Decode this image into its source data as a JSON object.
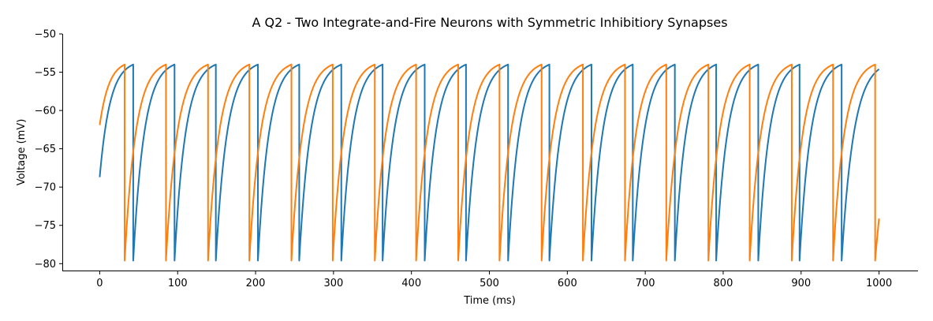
{
  "chart_data": {
    "type": "line",
    "title": "A Q2 - Two Integrate-and-Fire Neurons with Symmetric Inhibitiory Synapses",
    "xlabel": "Time (ms)",
    "ylabel": "Voltage (mV)",
    "xlim": [
      -48,
      1050
    ],
    "ylim": [
      -81,
      -50
    ],
    "xticks": [
      0,
      100,
      200,
      300,
      400,
      500,
      600,
      700,
      800,
      900,
      1000
    ],
    "xtick_labels": [
      "0",
      "100",
      "200",
      "300",
      "400",
      "500",
      "600",
      "700",
      "800",
      "900",
      "1000"
    ],
    "yticks": [
      -80,
      -75,
      -70,
      -65,
      -60,
      -55,
      -50
    ],
    "ytick_labels": [
      "−80",
      "−75",
      "−70",
      "−65",
      "−60",
      "−55",
      "−50"
    ],
    "grid": false,
    "legend": "none",
    "series": [
      {
        "color": "#1f77b4",
        "v_start": -68.7,
        "v_reset": -79.6,
        "v_threshold": -54,
        "tau_ms": 18,
        "spike_times_ms": [
          43,
          96,
          149,
          203,
          256,
          310,
          363,
          417,
          470,
          524,
          577,
          631,
          684,
          738,
          791,
          845,
          898,
          952
        ],
        "t_end_ms": 1000,
        "v_end": -54.6
      },
      {
        "color": "#ff7f0e",
        "v_start": -61.9,
        "v_reset": -79.6,
        "v_threshold": -54,
        "tau_ms": 18,
        "spike_times_ms": [
          32,
          85,
          139,
          192,
          246,
          299,
          353,
          406,
          460,
          513,
          567,
          620,
          674,
          727,
          781,
          834,
          888,
          941,
          995
        ],
        "t_end_ms": 1000,
        "v_end": -74.1
      }
    ]
  }
}
